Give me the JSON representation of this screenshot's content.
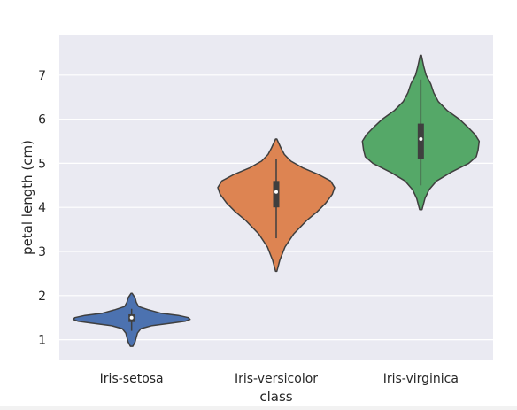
{
  "chart_data": {
    "type": "violin",
    "title": "",
    "xlabel": "class",
    "ylabel": "petal length (cm)",
    "categories": [
      "Iris-setosa",
      "Iris-versicolor",
      "Iris-virginica"
    ],
    "ylim": [
      0.55,
      7.9
    ],
    "yticks": [
      1,
      2,
      3,
      4,
      5,
      6,
      7
    ],
    "grid": true,
    "legend": "none",
    "series": [
      {
        "category": "Iris-setosa",
        "color": "#4c72b0",
        "range": [
          0.85,
          2.05
        ],
        "q1": 1.4,
        "median": 1.5,
        "q3": 1.575,
        "whisker": [
          1.2,
          1.7
        ],
        "density": [
          [
            0.85,
            0.02
          ],
          [
            0.95,
            0.06
          ],
          [
            1.05,
            0.08
          ],
          [
            1.15,
            0.1
          ],
          [
            1.25,
            0.16
          ],
          [
            1.32,
            0.35
          ],
          [
            1.38,
            0.7
          ],
          [
            1.42,
            0.92
          ],
          [
            1.46,
            1.0
          ],
          [
            1.5,
            0.97
          ],
          [
            1.55,
            0.8
          ],
          [
            1.6,
            0.5
          ],
          [
            1.68,
            0.28
          ],
          [
            1.75,
            0.12
          ],
          [
            1.85,
            0.08
          ],
          [
            1.95,
            0.06
          ],
          [
            2.05,
            0.01
          ]
        ]
      },
      {
        "category": "Iris-versicolor",
        "color": "#dd8452",
        "range": [
          2.55,
          5.55
        ],
        "q1": 4.0,
        "median": 4.35,
        "q3": 4.6,
        "whisker": [
          3.3,
          5.1
        ],
        "density": [
          [
            2.55,
            0.01
          ],
          [
            2.8,
            0.06
          ],
          [
            3.1,
            0.15
          ],
          [
            3.4,
            0.3
          ],
          [
            3.7,
            0.52
          ],
          [
            3.9,
            0.7
          ],
          [
            4.1,
            0.85
          ],
          [
            4.3,
            0.96
          ],
          [
            4.45,
            1.0
          ],
          [
            4.6,
            0.93
          ],
          [
            4.75,
            0.72
          ],
          [
            4.9,
            0.45
          ],
          [
            5.05,
            0.25
          ],
          [
            5.2,
            0.14
          ],
          [
            5.35,
            0.08
          ],
          [
            5.55,
            0.01
          ]
        ]
      },
      {
        "category": "Iris-virginica",
        "color": "#55a868",
        "range": [
          3.95,
          7.45
        ],
        "q1": 5.1,
        "median": 5.55,
        "q3": 5.9,
        "whisker": [
          4.5,
          6.9
        ],
        "density": [
          [
            3.95,
            0.02
          ],
          [
            4.2,
            0.07
          ],
          [
            4.4,
            0.14
          ],
          [
            4.6,
            0.27
          ],
          [
            4.8,
            0.52
          ],
          [
            5.0,
            0.82
          ],
          [
            5.15,
            0.95
          ],
          [
            5.3,
            0.98
          ],
          [
            5.5,
            1.0
          ],
          [
            5.65,
            0.93
          ],
          [
            5.8,
            0.82
          ],
          [
            6.0,
            0.66
          ],
          [
            6.2,
            0.45
          ],
          [
            6.4,
            0.3
          ],
          [
            6.6,
            0.22
          ],
          [
            6.8,
            0.17
          ],
          [
            7.0,
            0.09
          ],
          [
            7.2,
            0.05
          ],
          [
            7.45,
            0.01
          ]
        ]
      }
    ]
  }
}
